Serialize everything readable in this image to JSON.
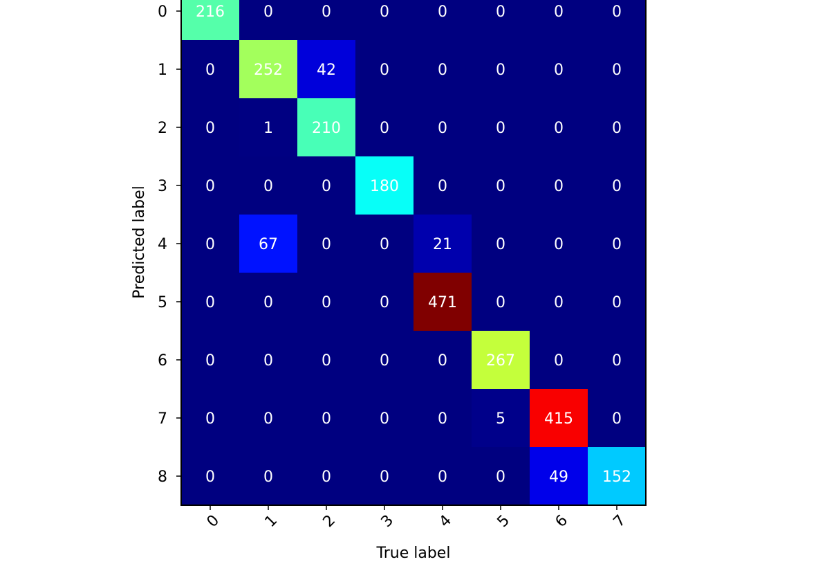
{
  "chart_data": {
    "type": "heatmap",
    "title": "",
    "xlabel": "True label",
    "ylabel": "Predicted label",
    "x_tick_labels": [
      "0",
      "1",
      "2",
      "3",
      "4",
      "5",
      "6",
      "7"
    ],
    "y_tick_labels": [
      "0",
      "1",
      "2",
      "3",
      "4",
      "5",
      "6",
      "7",
      "8"
    ],
    "colormap": "jet",
    "value_range": [
      0,
      471
    ],
    "text_color": "#ffffff",
    "matrix": [
      [
        216,
        0,
        0,
        0,
        0,
        0,
        0,
        0
      ],
      [
        0,
        252,
        42,
        0,
        0,
        0,
        0,
        0
      ],
      [
        0,
        1,
        210,
        0,
        0,
        0,
        0,
        0
      ],
      [
        0,
        0,
        0,
        180,
        0,
        0,
        0,
        0
      ],
      [
        0,
        67,
        0,
        0,
        21,
        0,
        0,
        0
      ],
      [
        0,
        0,
        0,
        0,
        471,
        0,
        0,
        0
      ],
      [
        0,
        0,
        0,
        0,
        0,
        267,
        0,
        0
      ],
      [
        0,
        0,
        0,
        0,
        0,
        5,
        415,
        0
      ],
      [
        0,
        0,
        0,
        0,
        0,
        0,
        49,
        152
      ]
    ]
  }
}
